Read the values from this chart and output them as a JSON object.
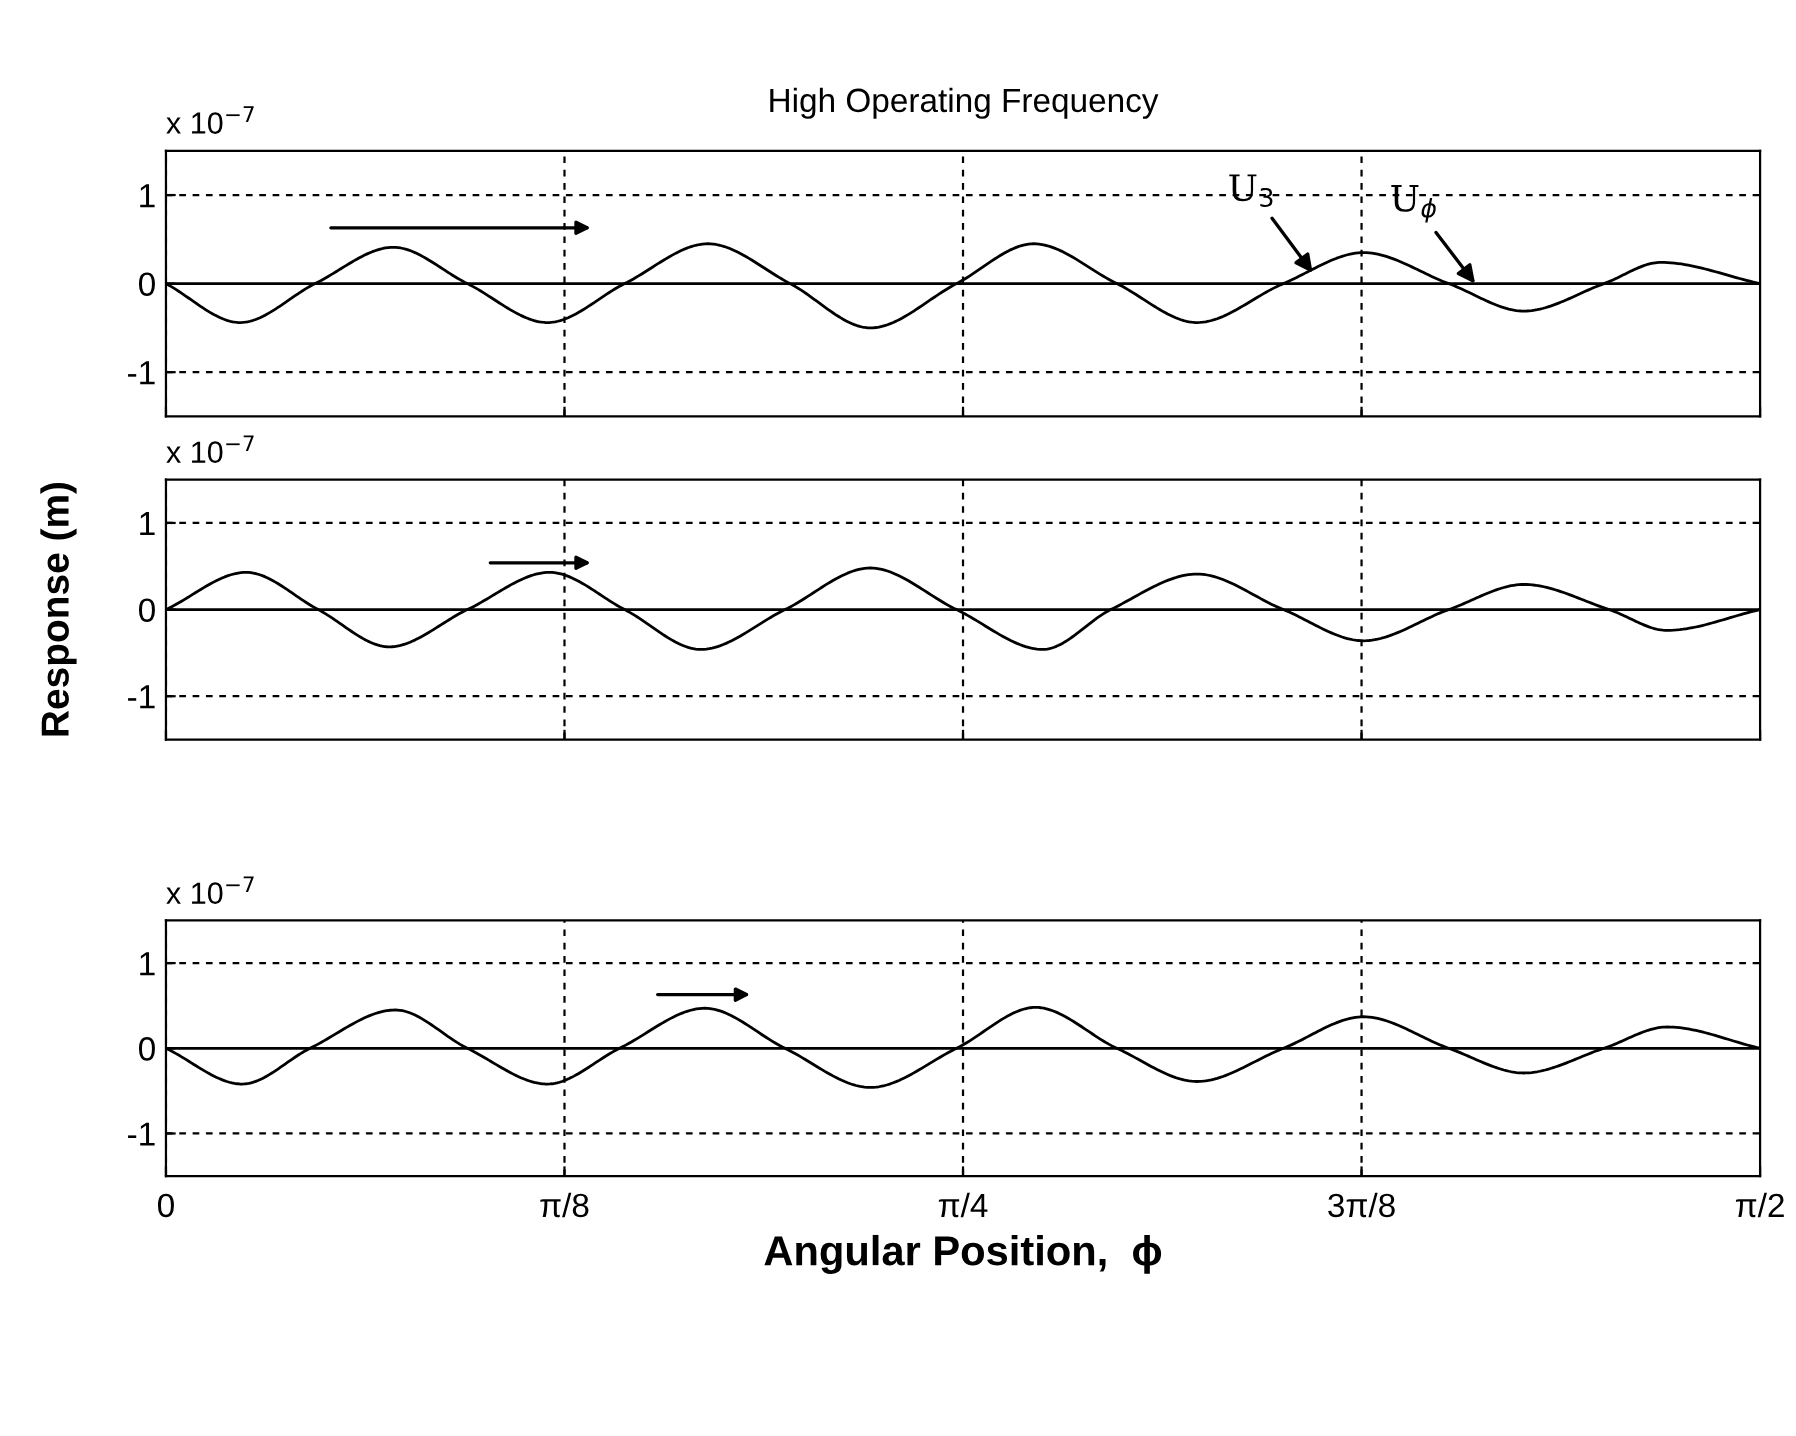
{
  "chart_data": [
    {
      "type": "line",
      "title": "High Operating Frequency",
      "xlim": [
        0,
        1.5708
      ],
      "ylim": [
        -1.5,
        1.5
      ],
      "xticks": [
        {
          "value": 0,
          "label": null
        },
        {
          "value": 0.3927,
          "label": null
        },
        {
          "value": 0.7854,
          "label": null
        },
        {
          "value": 1.1781,
          "label": null
        },
        {
          "value": 1.5708,
          "label": null
        }
      ],
      "yticks": [
        -1,
        0,
        1
      ],
      "grid": true,
      "tick_labels": "y",
      "annotations": [
        "x 10$^{−7}$",
        {
          "text": "U$_{3}$",
          "x": 1.13,
          "y": 0.12
        },
        {
          "text": "U$_{ϕ}$",
          "x": 1.29,
          "y": 0.0
        }
      ],
      "series": [
        {
          "color": "#000000",
          "x": [
            0,
            0.073,
            0.147,
            0.224,
            0.297,
            0.376,
            0.452,
            0.534,
            0.615,
            0.694,
            0.779,
            0.855,
            0.937,
            1.016,
            1.101,
            1.18,
            1.264,
            1.338,
            1.417,
            1.473,
            1.5708
          ],
          "values": [
            0,
            -0.44,
            0,
            0.41,
            0,
            -0.44,
            0,
            0.45,
            0,
            -0.5,
            0,
            0.45,
            0,
            -0.44,
            0,
            0.35,
            0,
            -0.31,
            0,
            0.24,
            0
          ]
        },
        {
          "color": "#000000",
          "x": [
            0,
            1.5708
          ],
          "values": [
            0,
            0
          ]
        }
      ]
    },
    {
      "type": "line",
      "ylabel": "Response (m)",
      "xlim": [
        0,
        1.5708
      ],
      "ylim": [
        -1.5,
        1.5
      ],
      "xticks": [
        {
          "value": 0,
          "label": null
        },
        {
          "value": 0.3927,
          "label": null
        },
        {
          "value": 0.7854,
          "label": null
        },
        {
          "value": 1.1781,
          "label": null
        },
        {
          "value": 1.5708,
          "label": null
        }
      ],
      "yticks": [
        -1,
        0,
        1
      ],
      "grid": true,
      "tick_labels": "y",
      "annotations": [
        "x 10$^{−7}$"
      ],
      "series": [
        {
          "color": "#000000",
          "x": [
            0,
            0.079,
            0.15,
            0.22,
            0.297,
            0.378,
            0.452,
            0.527,
            0.61,
            0.694,
            0.779,
            0.864,
            0.931,
            1.016,
            1.101,
            1.18,
            1.264,
            1.338,
            1.422,
            1.479,
            1.5708
          ],
          "values": [
            0,
            0.43,
            0,
            -0.43,
            0,
            0.43,
            0,
            -0.46,
            0,
            0.48,
            0,
            -0.46,
            0,
            0.41,
            0,
            -0.36,
            0,
            0.29,
            0,
            -0.24,
            0
          ]
        },
        {
          "color": "#000000",
          "x": [
            0,
            1.5708
          ],
          "values": [
            0,
            0
          ]
        }
      ]
    },
    {
      "type": "line",
      "xlabel": "Angular Position,  ϕ",
      "xlim": [
        0,
        1.5708
      ],
      "ylim": [
        -1.5,
        1.5
      ],
      "xticks": [
        {
          "value": 0,
          "label": "0"
        },
        {
          "value": 0.3927,
          "label": "π/8"
        },
        {
          "value": 0.7854,
          "label": "π/4"
        },
        {
          "value": 1.1781,
          "label": "3π/8"
        },
        {
          "value": 1.5708,
          "label": "π/2"
        }
      ],
      "yticks": [
        -1,
        0,
        1
      ],
      "grid": true,
      "annotations": [
        "x 10$^{−7}$"
      ],
      "series": [
        {
          "color": "#000000",
          "x": [
            0,
            0.075,
            0.142,
            0.226,
            0.297,
            0.376,
            0.447,
            0.531,
            0.61,
            0.694,
            0.779,
            0.857,
            0.937,
            1.016,
            1.101,
            1.18,
            1.264,
            1.338,
            1.417,
            1.479,
            1.5708
          ],
          "values": [
            0,
            -0.42,
            0,
            0.45,
            0,
            -0.42,
            0,
            0.47,
            0,
            -0.46,
            0,
            0.48,
            0,
            -0.39,
            0,
            0.37,
            0,
            -0.29,
            0,
            0.25,
            0
          ]
        },
        {
          "color": "#000000",
          "x": [
            0,
            1.5708
          ],
          "values": [
            0,
            0
          ]
        }
      ]
    }
  ]
}
